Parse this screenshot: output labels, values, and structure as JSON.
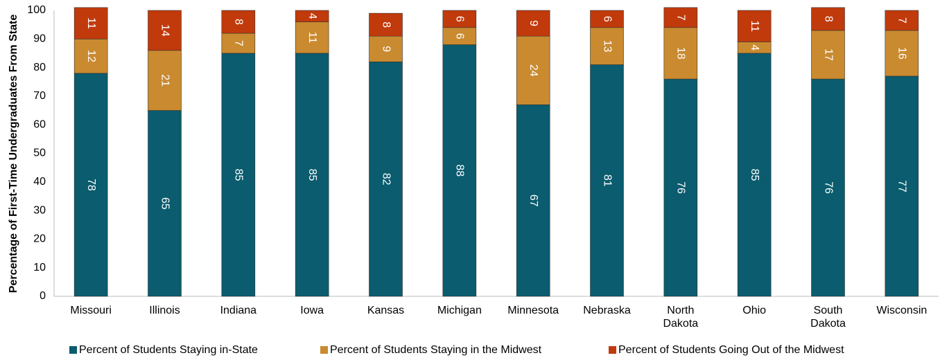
{
  "chart_data": {
    "type": "stacked_bar",
    "y_label": "Percentage of First-Time Undergraduates From State",
    "categories": [
      "Missouri",
      "Illinois",
      "Indiana",
      "Iowa",
      "Kansas",
      "Michigan",
      "Minnesota",
      "Nebraska",
      "North Dakota",
      "Ohio",
      "South Dakota",
      "Wisconsin"
    ],
    "series": [
      {
        "name": "Percent of Students Staying in-State",
        "color": "#0a5c6e",
        "values": [
          78,
          65,
          85,
          85,
          82,
          88,
          67,
          81,
          76,
          85,
          76,
          77
        ]
      },
      {
        "name": "Percent of Students Staying in the Midwest",
        "color": "#c98a30",
        "values": [
          12,
          21,
          7,
          11,
          9,
          6,
          24,
          13,
          18,
          4,
          17,
          16
        ]
      },
      {
        "name": "Percent of Students Going Out of the Midwest",
        "color": "#c13a0c",
        "values": [
          11,
          14,
          8,
          4,
          8,
          6,
          9,
          6,
          7,
          11,
          8,
          7
        ]
      }
    ],
    "ylim": [
      0,
      100
    ],
    "yticks": [
      0,
      10,
      20,
      30,
      40,
      50,
      60,
      70,
      80,
      90,
      100
    ],
    "grid": false,
    "legend": "bottom"
  }
}
